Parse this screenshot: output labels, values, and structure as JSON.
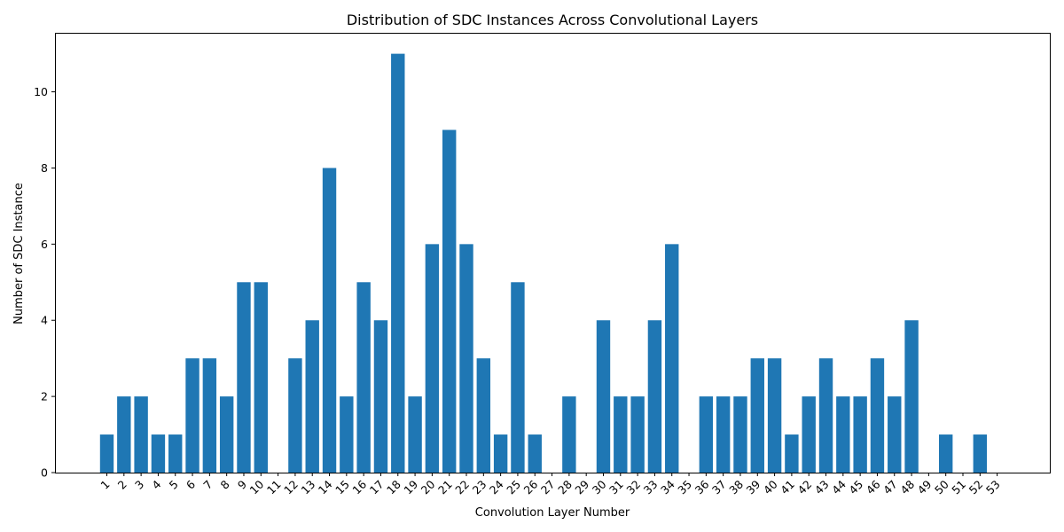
{
  "chart_data": {
    "type": "bar",
    "title": "Distribution of SDC Instances Across Convolutional Layers",
    "xlabel": "Convolution Layer Number",
    "ylabel": "Number of SDC Instance",
    "ylim": [
      0,
      11.55
    ],
    "yticks": [
      0,
      2,
      4,
      6,
      8,
      10
    ],
    "grid": false,
    "legend": "none",
    "bar_color": "#1f77b4",
    "categories": [
      "1",
      "2",
      "3",
      "4",
      "5",
      "6",
      "7",
      "8",
      "9",
      "10",
      "11",
      "12",
      "13",
      "14",
      "15",
      "16",
      "17",
      "18",
      "19",
      "20",
      "21",
      "22",
      "23",
      "24",
      "25",
      "26",
      "27",
      "28",
      "29",
      "30",
      "31",
      "32",
      "33",
      "34",
      "35",
      "36",
      "37",
      "38",
      "39",
      "40",
      "41",
      "42",
      "43",
      "44",
      "45",
      "46",
      "47",
      "48",
      "49",
      "50",
      "51",
      "52",
      "53"
    ],
    "values": [
      1,
      2,
      2,
      1,
      1,
      3,
      3,
      2,
      5,
      5,
      0,
      3,
      4,
      8,
      2,
      5,
      4,
      11,
      2,
      6,
      9,
      6,
      3,
      1,
      5,
      1,
      0,
      2,
      0,
      4,
      2,
      2,
      4,
      6,
      0,
      2,
      2,
      2,
      3,
      3,
      1,
      2,
      3,
      2,
      2,
      3,
      2,
      4,
      0,
      1,
      0,
      1,
      0
    ]
  }
}
